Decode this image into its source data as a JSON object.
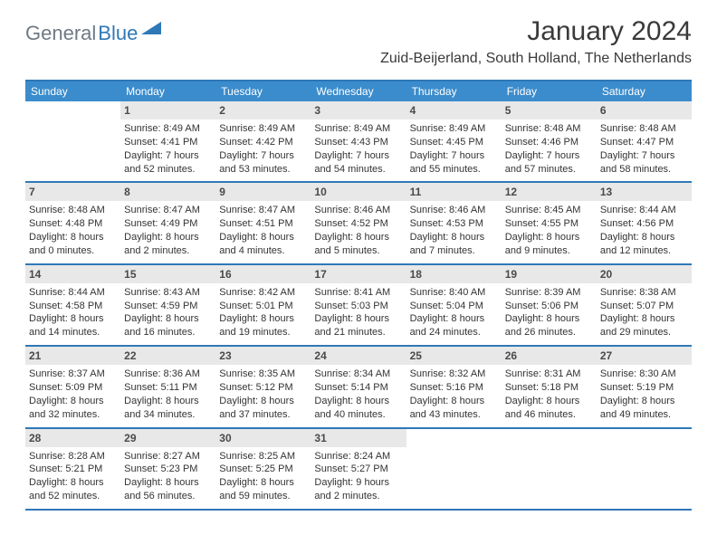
{
  "logo": {
    "textGray": "General",
    "textBlue": "Blue"
  },
  "header": {
    "month": "January 2024",
    "location": "Zuid-Beijerland, South Holland, The Netherlands"
  },
  "colors": {
    "headerBar": "#3b8ccc",
    "accentLine": "#2f78b7",
    "dayNumBg": "#e8e8e8",
    "logoGray": "#6f7a85",
    "logoBlue": "#2f78b7",
    "text": "#333333",
    "background": "#ffffff"
  },
  "typography": {
    "monthTitleSize": 30,
    "locationSize": 16,
    "weekdaySize": 12,
    "dayNumSize": 12,
    "bodySize": 11
  },
  "weekdays": [
    "Sunday",
    "Monday",
    "Tuesday",
    "Wednesday",
    "Thursday",
    "Friday",
    "Saturday"
  ],
  "weeks": [
    [
      null,
      {
        "n": "1",
        "sr": "Sunrise: 8:49 AM",
        "ss": "Sunset: 4:41 PM",
        "d1": "Daylight: 7 hours",
        "d2": "and 52 minutes."
      },
      {
        "n": "2",
        "sr": "Sunrise: 8:49 AM",
        "ss": "Sunset: 4:42 PM",
        "d1": "Daylight: 7 hours",
        "d2": "and 53 minutes."
      },
      {
        "n": "3",
        "sr": "Sunrise: 8:49 AM",
        "ss": "Sunset: 4:43 PM",
        "d1": "Daylight: 7 hours",
        "d2": "and 54 minutes."
      },
      {
        "n": "4",
        "sr": "Sunrise: 8:49 AM",
        "ss": "Sunset: 4:45 PM",
        "d1": "Daylight: 7 hours",
        "d2": "and 55 minutes."
      },
      {
        "n": "5",
        "sr": "Sunrise: 8:48 AM",
        "ss": "Sunset: 4:46 PM",
        "d1": "Daylight: 7 hours",
        "d2": "and 57 minutes."
      },
      {
        "n": "6",
        "sr": "Sunrise: 8:48 AM",
        "ss": "Sunset: 4:47 PM",
        "d1": "Daylight: 7 hours",
        "d2": "and 58 minutes."
      }
    ],
    [
      {
        "n": "7",
        "sr": "Sunrise: 8:48 AM",
        "ss": "Sunset: 4:48 PM",
        "d1": "Daylight: 8 hours",
        "d2": "and 0 minutes."
      },
      {
        "n": "8",
        "sr": "Sunrise: 8:47 AM",
        "ss": "Sunset: 4:49 PM",
        "d1": "Daylight: 8 hours",
        "d2": "and 2 minutes."
      },
      {
        "n": "9",
        "sr": "Sunrise: 8:47 AM",
        "ss": "Sunset: 4:51 PM",
        "d1": "Daylight: 8 hours",
        "d2": "and 4 minutes."
      },
      {
        "n": "10",
        "sr": "Sunrise: 8:46 AM",
        "ss": "Sunset: 4:52 PM",
        "d1": "Daylight: 8 hours",
        "d2": "and 5 minutes."
      },
      {
        "n": "11",
        "sr": "Sunrise: 8:46 AM",
        "ss": "Sunset: 4:53 PM",
        "d1": "Daylight: 8 hours",
        "d2": "and 7 minutes."
      },
      {
        "n": "12",
        "sr": "Sunrise: 8:45 AM",
        "ss": "Sunset: 4:55 PM",
        "d1": "Daylight: 8 hours",
        "d2": "and 9 minutes."
      },
      {
        "n": "13",
        "sr": "Sunrise: 8:44 AM",
        "ss": "Sunset: 4:56 PM",
        "d1": "Daylight: 8 hours",
        "d2": "and 12 minutes."
      }
    ],
    [
      {
        "n": "14",
        "sr": "Sunrise: 8:44 AM",
        "ss": "Sunset: 4:58 PM",
        "d1": "Daylight: 8 hours",
        "d2": "and 14 minutes."
      },
      {
        "n": "15",
        "sr": "Sunrise: 8:43 AM",
        "ss": "Sunset: 4:59 PM",
        "d1": "Daylight: 8 hours",
        "d2": "and 16 minutes."
      },
      {
        "n": "16",
        "sr": "Sunrise: 8:42 AM",
        "ss": "Sunset: 5:01 PM",
        "d1": "Daylight: 8 hours",
        "d2": "and 19 minutes."
      },
      {
        "n": "17",
        "sr": "Sunrise: 8:41 AM",
        "ss": "Sunset: 5:03 PM",
        "d1": "Daylight: 8 hours",
        "d2": "and 21 minutes."
      },
      {
        "n": "18",
        "sr": "Sunrise: 8:40 AM",
        "ss": "Sunset: 5:04 PM",
        "d1": "Daylight: 8 hours",
        "d2": "and 24 minutes."
      },
      {
        "n": "19",
        "sr": "Sunrise: 8:39 AM",
        "ss": "Sunset: 5:06 PM",
        "d1": "Daylight: 8 hours",
        "d2": "and 26 minutes."
      },
      {
        "n": "20",
        "sr": "Sunrise: 8:38 AM",
        "ss": "Sunset: 5:07 PM",
        "d1": "Daylight: 8 hours",
        "d2": "and 29 minutes."
      }
    ],
    [
      {
        "n": "21",
        "sr": "Sunrise: 8:37 AM",
        "ss": "Sunset: 5:09 PM",
        "d1": "Daylight: 8 hours",
        "d2": "and 32 minutes."
      },
      {
        "n": "22",
        "sr": "Sunrise: 8:36 AM",
        "ss": "Sunset: 5:11 PM",
        "d1": "Daylight: 8 hours",
        "d2": "and 34 minutes."
      },
      {
        "n": "23",
        "sr": "Sunrise: 8:35 AM",
        "ss": "Sunset: 5:12 PM",
        "d1": "Daylight: 8 hours",
        "d2": "and 37 minutes."
      },
      {
        "n": "24",
        "sr": "Sunrise: 8:34 AM",
        "ss": "Sunset: 5:14 PM",
        "d1": "Daylight: 8 hours",
        "d2": "and 40 minutes."
      },
      {
        "n": "25",
        "sr": "Sunrise: 8:32 AM",
        "ss": "Sunset: 5:16 PM",
        "d1": "Daylight: 8 hours",
        "d2": "and 43 minutes."
      },
      {
        "n": "26",
        "sr": "Sunrise: 8:31 AM",
        "ss": "Sunset: 5:18 PM",
        "d1": "Daylight: 8 hours",
        "d2": "and 46 minutes."
      },
      {
        "n": "27",
        "sr": "Sunrise: 8:30 AM",
        "ss": "Sunset: 5:19 PM",
        "d1": "Daylight: 8 hours",
        "d2": "and 49 minutes."
      }
    ],
    [
      {
        "n": "28",
        "sr": "Sunrise: 8:28 AM",
        "ss": "Sunset: 5:21 PM",
        "d1": "Daylight: 8 hours",
        "d2": "and 52 minutes."
      },
      {
        "n": "29",
        "sr": "Sunrise: 8:27 AM",
        "ss": "Sunset: 5:23 PM",
        "d1": "Daylight: 8 hours",
        "d2": "and 56 minutes."
      },
      {
        "n": "30",
        "sr": "Sunrise: 8:25 AM",
        "ss": "Sunset: 5:25 PM",
        "d1": "Daylight: 8 hours",
        "d2": "and 59 minutes."
      },
      {
        "n": "31",
        "sr": "Sunrise: 8:24 AM",
        "ss": "Sunset: 5:27 PM",
        "d1": "Daylight: 9 hours",
        "d2": "and 2 minutes."
      },
      null,
      null,
      null
    ]
  ]
}
